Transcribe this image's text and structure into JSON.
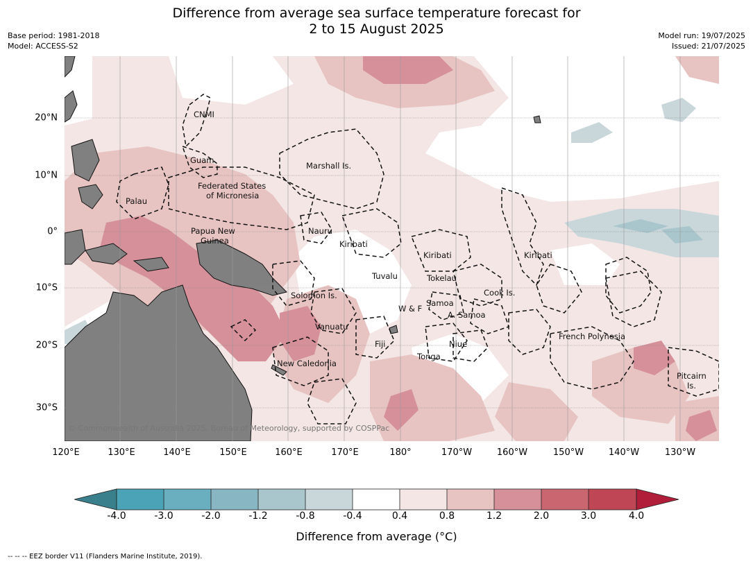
{
  "title_line1": "Difference from average sea surface temperature forecast for",
  "title_line2": "2 to 15 August 2025",
  "meta_left": [
    "Base period: 1981-2018",
    "Model: ACCESS-S2"
  ],
  "meta_right": [
    "Model run: 19/07/2025",
    "Issued: 21/07/2025"
  ],
  "lon_labels": [
    "120°E",
    "130°E",
    "140°E",
    "150°E",
    "160°E",
    "170°E",
    "180°",
    "170°W",
    "160°W",
    "150°W",
    "140°W",
    "130°W"
  ],
  "lat_labels": [
    "20°N",
    "10°N",
    "0°",
    "10°S",
    "20°S",
    "30°S"
  ],
  "places": {
    "cnmi": "CNMI",
    "guam": "Guam",
    "marshall": "Marshall Is.",
    "fsm1": "Federated States",
    "fsm2": "of Micronesia",
    "palau": "Palau",
    "nauru": "Nauru",
    "kiribati_w": "Kiribati",
    "kiribati_c": "Kiribati",
    "kiribati_e": "Kiribati",
    "png1": "Papua New",
    "png2": "Guinea",
    "tuvalu": "Tuvalu",
    "tokelau": "Tokelau",
    "cook": "Cook Is.",
    "solomon": "Solomon Is.",
    "samoa": "Samoa",
    "wf": "W & F",
    "asamoa": "A. Samoa",
    "vanuatu": "Vanuatu",
    "fiji": "Fiji",
    "niue": "Niue",
    "frenchpoly": "French Polynesia",
    "tonga": "Tonga",
    "newcal": "New Caledonia",
    "pitcairn1": "Pitcairn",
    "pitcairn2": "Is."
  },
  "copyright": "© Commonwealth of Australia 2025, Bureau of Meteorology, supported by COSPPac",
  "colorbar": {
    "ticks": [
      "-4.0",
      "-3.0",
      "-2.0",
      "-1.2",
      "-0.8",
      "-0.4",
      "0.4",
      "0.8",
      "1.2",
      "2.0",
      "3.0",
      "4.0"
    ],
    "colors": {
      "below_min": "#3a7f8c",
      "b1": "#4aa3b6",
      "b2": "#6aafbf",
      "b3": "#88b6c2",
      "b4": "#a8c6cc",
      "b5": "#c9d7db",
      "b6": "#ffffff",
      "b7": "#f3e6e5",
      "b8": "#e7c4c2",
      "b9": "#d5909a",
      "b10": "#c9666f",
      "b11": "#bf4655",
      "above_max": "#b01e3a"
    },
    "label": "Difference from average (°C)"
  },
  "footer": "-- -- -- EEZ border V11 (Flanders Marine Institute, 2019).",
  "land_color": "#808080"
}
